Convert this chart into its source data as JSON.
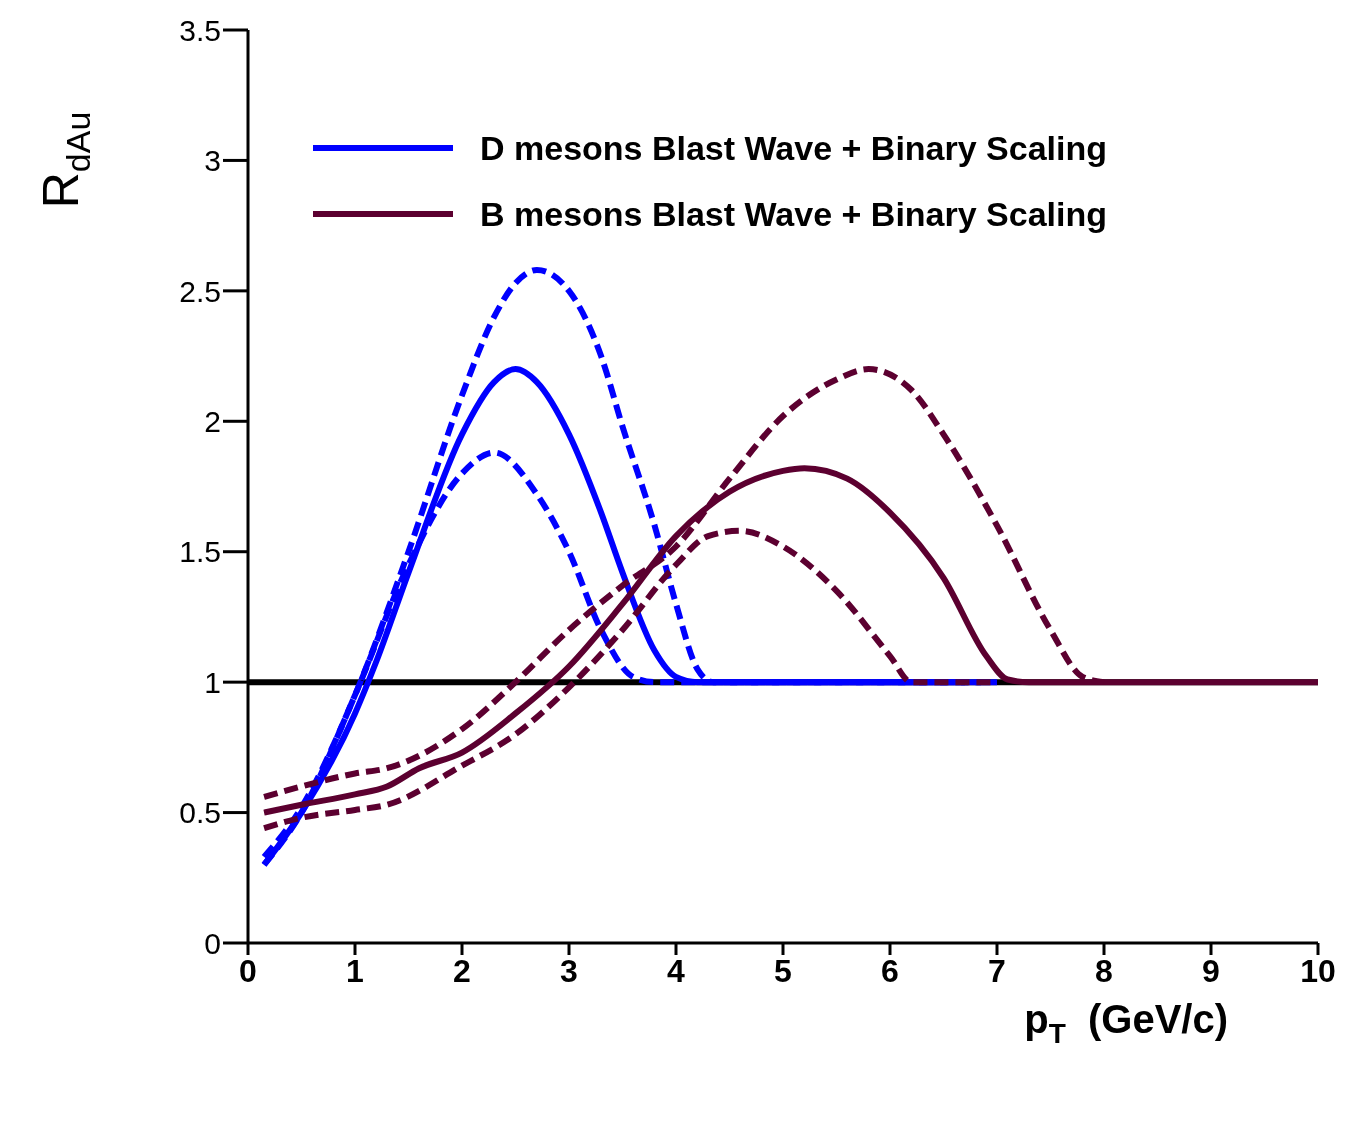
{
  "chart_data": {
    "type": "line",
    "xlabel": "p$_{T}$  (GeV/c)",
    "ylabel": "R$_{dAu}$",
    "xlim": [
      0,
      10
    ],
    "ylim": [
      0,
      3.5
    ],
    "xticks": [
      0,
      1,
      2,
      3,
      4,
      5,
      6,
      7,
      8,
      9,
      10
    ],
    "yticks": [
      0,
      0.5,
      1,
      1.5,
      2,
      2.5,
      3,
      3.5
    ],
    "grid": false,
    "legend": "top left",
    "marker": "none",
    "ref_lines": [
      {
        "axis": "y",
        "value": 1,
        "color": "#000000",
        "line_style": "solid"
      }
    ],
    "series": [
      {
        "name": "D mesons Blast Wave + Binary Scaling",
        "color": "#0000ff",
        "line_style": "solid",
        "x": [
          0.15,
          0.5,
          1,
          1.2,
          1.5,
          2,
          2.3,
          2.5,
          2.7,
          3,
          3.3,
          3.5,
          3.8,
          4,
          4.2,
          5,
          6,
          7
        ],
        "values": [
          0.3,
          0.5,
          0.88,
          1.08,
          1.42,
          1.95,
          2.15,
          2.2,
          2.15,
          1.95,
          1.65,
          1.42,
          1.12,
          1.02,
          1.0,
          1.0,
          1.0,
          1.0
        ]
      },
      {
        "color": "#0000ff",
        "line_style": "dashed",
        "x": [
          0.15,
          0.5,
          1,
          1.5,
          2,
          2.3,
          2.5,
          2.7,
          3,
          3.3,
          3.5,
          3.8,
          4,
          4.2,
          4.35,
          5,
          6,
          6.7
        ],
        "values": [
          0.33,
          0.52,
          0.95,
          1.5,
          2.1,
          2.4,
          2.53,
          2.58,
          2.5,
          2.25,
          1.98,
          1.6,
          1.3,
          1.05,
          1.0,
          1.0,
          1.0,
          1.0
        ]
      },
      {
        "color": "#0000ff",
        "line_style": "dashed",
        "x": [
          0.15,
          0.5,
          1,
          1.5,
          2,
          2.3,
          2.7,
          3,
          3.3,
          3.6,
          3.8,
          4.5,
          6,
          6.85
        ],
        "values": [
          0.3,
          0.5,
          0.95,
          1.45,
          1.8,
          1.88,
          1.72,
          1.5,
          1.2,
          1.02,
          1.0,
          1.0,
          1.0,
          1.0
        ]
      },
      {
        "name": "B mesons Blast Wave + Binary Scaling",
        "color": "#5c0030",
        "line_style": "solid",
        "x": [
          0.15,
          0.5,
          1,
          1.3,
          1.6,
          2,
          2.5,
          3,
          3.5,
          4,
          4.5,
          5,
          5.2,
          5.6,
          6,
          6.5,
          6.9,
          7.1,
          7.3,
          8,
          9,
          10
        ],
        "values": [
          0.5,
          0.53,
          0.57,
          0.6,
          0.67,
          0.73,
          0.88,
          1.06,
          1.3,
          1.56,
          1.73,
          1.81,
          1.82,
          1.78,
          1.65,
          1.4,
          1.1,
          1.01,
          1.0,
          1.0,
          1.0,
          1.0
        ]
      },
      {
        "color": "#5c0030",
        "line_style": "dashed",
        "x": [
          0.15,
          0.5,
          1,
          1.3,
          2,
          2.5,
          3,
          3.5,
          4,
          4.5,
          5,
          5.5,
          5.8,
          6.2,
          6.5,
          7,
          7.5,
          7.8,
          8
        ],
        "values": [
          0.56,
          0.6,
          0.65,
          0.67,
          0.82,
          1.0,
          1.2,
          1.37,
          1.52,
          1.78,
          2.02,
          2.16,
          2.2,
          2.12,
          1.95,
          1.6,
          1.2,
          1.02,
          1.0
        ]
      },
      {
        "color": "#5c0030",
        "line_style": "dashed",
        "x": [
          0.15,
          0.5,
          1,
          1.3,
          2,
          2.5,
          3,
          3.5,
          4,
          4.3,
          4.6,
          5,
          5.5,
          6,
          6.2,
          7
        ],
        "values": [
          0.44,
          0.48,
          0.51,
          0.53,
          0.68,
          0.8,
          0.98,
          1.2,
          1.45,
          1.56,
          1.58,
          1.52,
          1.35,
          1.1,
          1.0,
          1.0
        ]
      }
    ]
  }
}
